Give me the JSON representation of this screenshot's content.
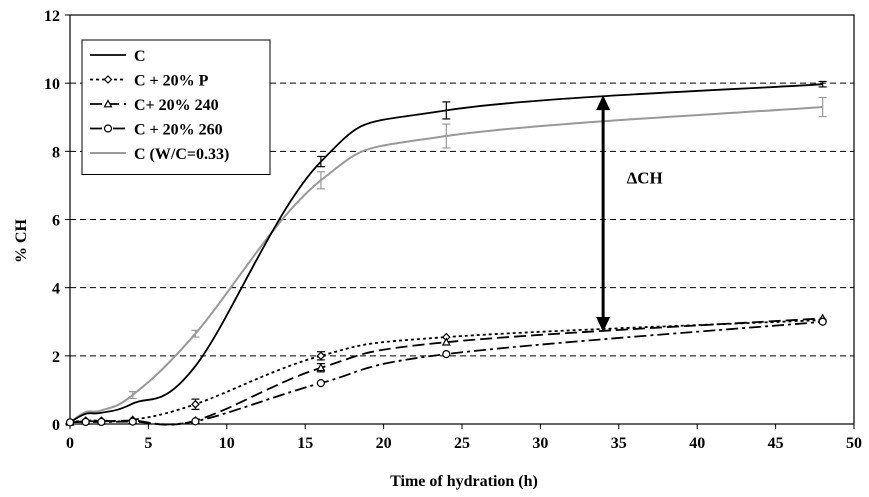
{
  "chart_data": {
    "type": "line",
    "xlabel": "Time of hydration (h)",
    "ylabel": "% CH",
    "xlim": [
      0,
      50
    ],
    "ylim": [
      0,
      12
    ],
    "xticks": [
      0,
      5,
      10,
      15,
      20,
      25,
      30,
      35,
      40,
      45,
      50
    ],
    "yticks": [
      0,
      2,
      4,
      6,
      8,
      10,
      12
    ],
    "grid": "horizontal dashed",
    "legend_position": "top-left",
    "series": [
      {
        "name": "C",
        "color": "#000000",
        "dash": "solid",
        "marker": "none",
        "points": [
          [
            0,
            0.05
          ],
          [
            1,
            0.3
          ],
          [
            2,
            0.33
          ],
          [
            4,
            0.6
          ],
          [
            8,
            1.7
          ],
          [
            16,
            7.7
          ],
          [
            24,
            9.2
          ],
          [
            48,
            9.97
          ]
        ],
        "error_x": [
          16,
          24,
          48
        ],
        "error_y": [
          0.15,
          0.25,
          0.08
        ]
      },
      {
        "name": "C + 20% P",
        "color": "#000000",
        "dash": "dotted",
        "marker": "diamond",
        "points": [
          [
            0,
            0.05
          ],
          [
            1,
            0.1
          ],
          [
            2,
            0.1
          ],
          [
            4,
            0.12
          ],
          [
            8,
            0.58
          ],
          [
            16,
            2.0
          ],
          [
            24,
            2.55
          ],
          [
            48,
            3.05
          ]
        ],
        "error_x": [
          8,
          16
        ],
        "error_y": [
          0.15,
          0.12
        ]
      },
      {
        "name": "C+ 20% 240",
        "color": "#000000",
        "dash": "longdash",
        "marker": "triangle",
        "points": [
          [
            0,
            0.05
          ],
          [
            1,
            0.08
          ],
          [
            2,
            0.08
          ],
          [
            4,
            0.1
          ],
          [
            8,
            0.1
          ],
          [
            16,
            1.65
          ],
          [
            24,
            2.4
          ],
          [
            48,
            3.1
          ]
        ],
        "error_x": [
          16
        ],
        "error_y": [
          0.12
        ]
      },
      {
        "name": "C + 20% 260",
        "color": "#000000",
        "dash": "dashdot",
        "marker": "circle",
        "points": [
          [
            0,
            0.05
          ],
          [
            1,
            0.06
          ],
          [
            2,
            0.06
          ],
          [
            4,
            0.07
          ],
          [
            8,
            0.08
          ],
          [
            16,
            1.2
          ],
          [
            24,
            2.05
          ],
          [
            48,
            3.0
          ]
        ],
        "error_x": [],
        "error_y": []
      },
      {
        "name": "C (W/C=0.33)",
        "color": "#999999",
        "dash": "solid",
        "marker": "none",
        "points": [
          [
            0,
            0.05
          ],
          [
            1,
            0.35
          ],
          [
            2,
            0.4
          ],
          [
            4,
            0.85
          ],
          [
            8,
            2.65
          ],
          [
            16,
            7.15
          ],
          [
            24,
            8.45
          ],
          [
            48,
            9.3
          ]
        ],
        "error_x": [
          4,
          8,
          16,
          24,
          48
        ],
        "error_y": [
          0.1,
          0.1,
          0.25,
          0.35,
          0.28
        ]
      }
    ],
    "annotations": [
      {
        "text": "ΔCH",
        "arrow_x": 34,
        "arrow_y_top": 9.65,
        "arrow_y_bottom": 2.7,
        "label_x": 35.5,
        "label_y": 7.05
      }
    ]
  }
}
